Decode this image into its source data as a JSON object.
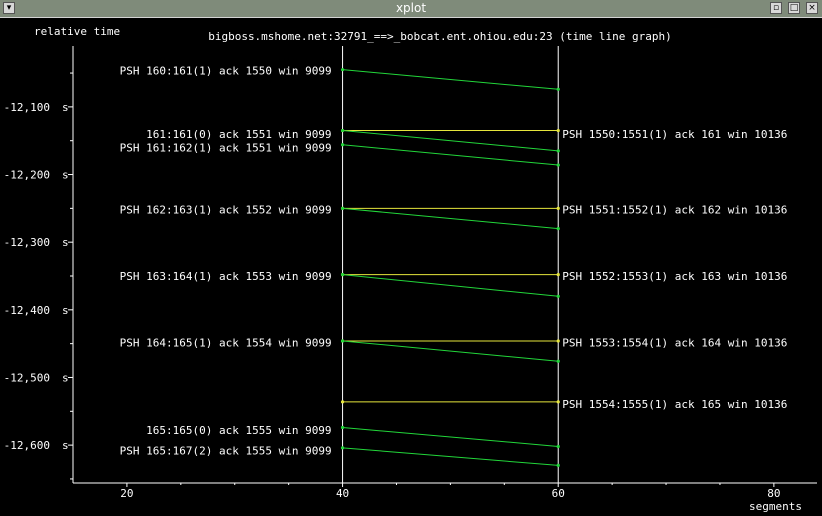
{
  "window": {
    "title": "xplot"
  },
  "chart_data": {
    "type": "line",
    "title": "bigboss.mshome.net:32791_==>_bobcat.ent.ohiou.edu:23 (time line graph)",
    "ylabel": "relative time",
    "xlabel": "segments",
    "y_unit": "s",
    "x_ticks": [
      "20",
      "40",
      "60",
      "80"
    ],
    "y_ticks": [
      "-12,100",
      "-12,200",
      "-12,300",
      "-12,400",
      "-12,500",
      "-12,600"
    ],
    "xlim": [
      15,
      84
    ],
    "ylim": [
      -12656,
      -12010
    ],
    "grid": false,
    "timelines": [
      40,
      60
    ],
    "left_labels": [
      {
        "y": -12046,
        "text": "PSH 160:161(1) ack 1550 win 9099"
      },
      {
        "y": -12140,
        "text": "161:161(0) ack 1551 win 9099"
      },
      {
        "y": -12160,
        "text": "PSH 161:162(1) ack 1551 win 9099"
      },
      {
        "y": -12252,
        "text": "PSH 162:163(1) ack 1552 win 9099"
      },
      {
        "y": -12350,
        "text": "PSH 163:164(1) ack 1553 win 9099"
      },
      {
        "y": -12448,
        "text": "PSH 164:165(1) ack 1554 win 9099"
      },
      {
        "y": -12578,
        "text": "165:165(0) ack 1555 win 9099"
      },
      {
        "y": -12608,
        "text": "PSH 165:167(2) ack 1555 win 9099"
      }
    ],
    "right_labels": [
      {
        "y": -12140,
        "text": "PSH 1550:1551(1) ack 161 win 10136"
      },
      {
        "y": -12252,
        "text": "PSH 1551:1552(1) ack 162 win 10136"
      },
      {
        "y": -12350,
        "text": "PSH 1552:1553(1) ack 163 win 10136"
      },
      {
        "y": -12448,
        "text": "PSH 1553:1554(1) ack 164 win 10136"
      },
      {
        "y": -12539,
        "text": "PSH 1554:1555(1) ack 165 win 10136"
      }
    ],
    "segments": [
      {
        "series": "green",
        "x1": 40,
        "y1": -12045,
        "x2": 60,
        "y2": -12074
      },
      {
        "series": "yellow",
        "x1": 40,
        "y1": -12135,
        "x2": 60,
        "y2": -12135
      },
      {
        "series": "green",
        "x1": 40,
        "y1": -12135,
        "x2": 60,
        "y2": -12165
      },
      {
        "series": "green",
        "x1": 40,
        "y1": -12156,
        "x2": 60,
        "y2": -12186
      },
      {
        "series": "yellow",
        "x1": 40,
        "y1": -12250,
        "x2": 60,
        "y2": -12250
      },
      {
        "series": "green",
        "x1": 40,
        "y1": -12250,
        "x2": 60,
        "y2": -12280
      },
      {
        "series": "yellow",
        "x1": 40,
        "y1": -12348,
        "x2": 60,
        "y2": -12348
      },
      {
        "series": "green",
        "x1": 40,
        "y1": -12348,
        "x2": 60,
        "y2": -12380
      },
      {
        "series": "yellow",
        "x1": 40,
        "y1": -12446,
        "x2": 60,
        "y2": -12446
      },
      {
        "series": "green",
        "x1": 40,
        "y1": -12446,
        "x2": 60,
        "y2": -12476
      },
      {
        "series": "yellow",
        "x1": 40,
        "y1": -12536,
        "x2": 60,
        "y2": -12536
      },
      {
        "series": "green",
        "x1": 40,
        "y1": -12574,
        "x2": 60,
        "y2": -12602
      },
      {
        "series": "green",
        "x1": 40,
        "y1": -12604,
        "x2": 60,
        "y2": -12630
      }
    ],
    "colors": {
      "green": "#22d63a",
      "yellow": "#e6e63c",
      "axis": "#ffffff"
    }
  }
}
